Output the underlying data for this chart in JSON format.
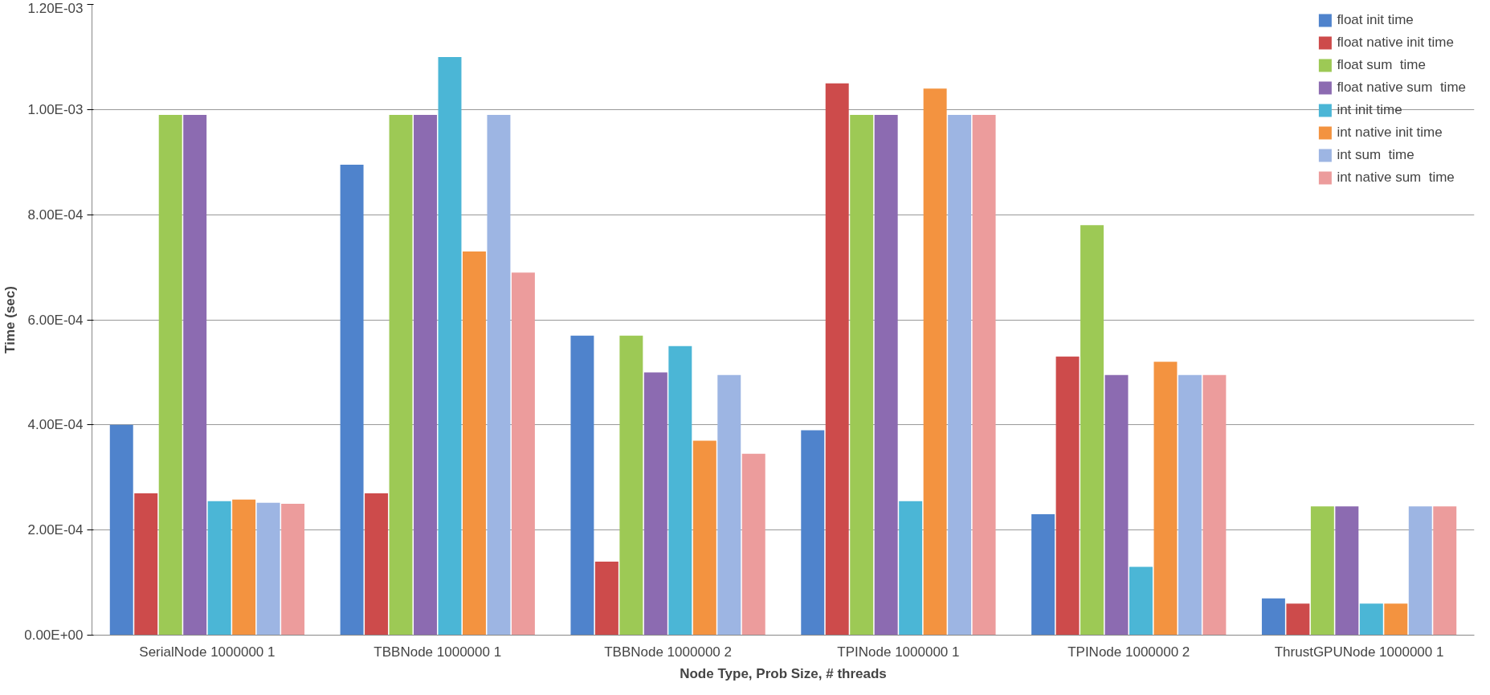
{
  "chart_data": {
    "type": "bar",
    "xlabel": "Node Type, Prob Size, # threads",
    "ylabel": "Time (sec)",
    "categories": [
      "SerialNode 1000000 1",
      "TBBNode 1000000 1",
      "TBBNode 1000000 2",
      "TPINode 1000000 1",
      "TPINode 1000000 2",
      "ThrustGPUNode 1000000 1"
    ],
    "series": [
      {
        "name": "float init time",
        "color": "#4f83cc",
        "values": [
          0.0004,
          0.000895,
          0.00057,
          0.00039,
          0.00023,
          7e-05
        ]
      },
      {
        "name": "float native init time",
        "color": "#cd4b4b",
        "values": [
          0.00027,
          0.00027,
          0.00014,
          0.00105,
          0.00053,
          6e-05
        ]
      },
      {
        "name": "float sum  time",
        "color": "#9dc955",
        "values": [
          0.00099,
          0.00099,
          0.00057,
          0.00099,
          0.00078,
          0.000245
        ]
      },
      {
        "name": "float native sum  time",
        "color": "#8c6bb1",
        "values": [
          0.00099,
          0.00099,
          0.0005,
          0.00099,
          0.000495,
          0.000245
        ]
      },
      {
        "name": "int init time",
        "color": "#4bb6d6",
        "values": [
          0.000255,
          0.0011,
          0.00055,
          0.000255,
          0.00013,
          6e-05
        ]
      },
      {
        "name": "int native init time",
        "color": "#f39340",
        "values": [
          0.000258,
          0.00073,
          0.00037,
          0.00104,
          0.00052,
          6e-05
        ]
      },
      {
        "name": "int sum  time",
        "color": "#9db5e3",
        "values": [
          0.000252,
          0.00099,
          0.000495,
          0.00099,
          0.000495,
          0.000245
        ]
      },
      {
        "name": "int native sum  time",
        "color": "#ec9c9c",
        "values": [
          0.00025,
          0.00069,
          0.000345,
          0.00099,
          0.000495,
          0.000245
        ]
      }
    ],
    "ylim": [
      0,
      0.0012
    ],
    "yticks": [
      {
        "value": 0,
        "label": "0.00E+00"
      },
      {
        "value": 0.0002,
        "label": "2.00E-04"
      },
      {
        "value": 0.0004,
        "label": "4.00E-04"
      },
      {
        "value": 0.0006,
        "label": "6.00E-04"
      },
      {
        "value": 0.0008,
        "label": "8.00E-04"
      },
      {
        "value": 0.001,
        "label": "1.00E-03"
      },
      {
        "value": 0.0012,
        "label": "1.20E-03"
      }
    ],
    "grid": "y",
    "legend": "top right"
  }
}
